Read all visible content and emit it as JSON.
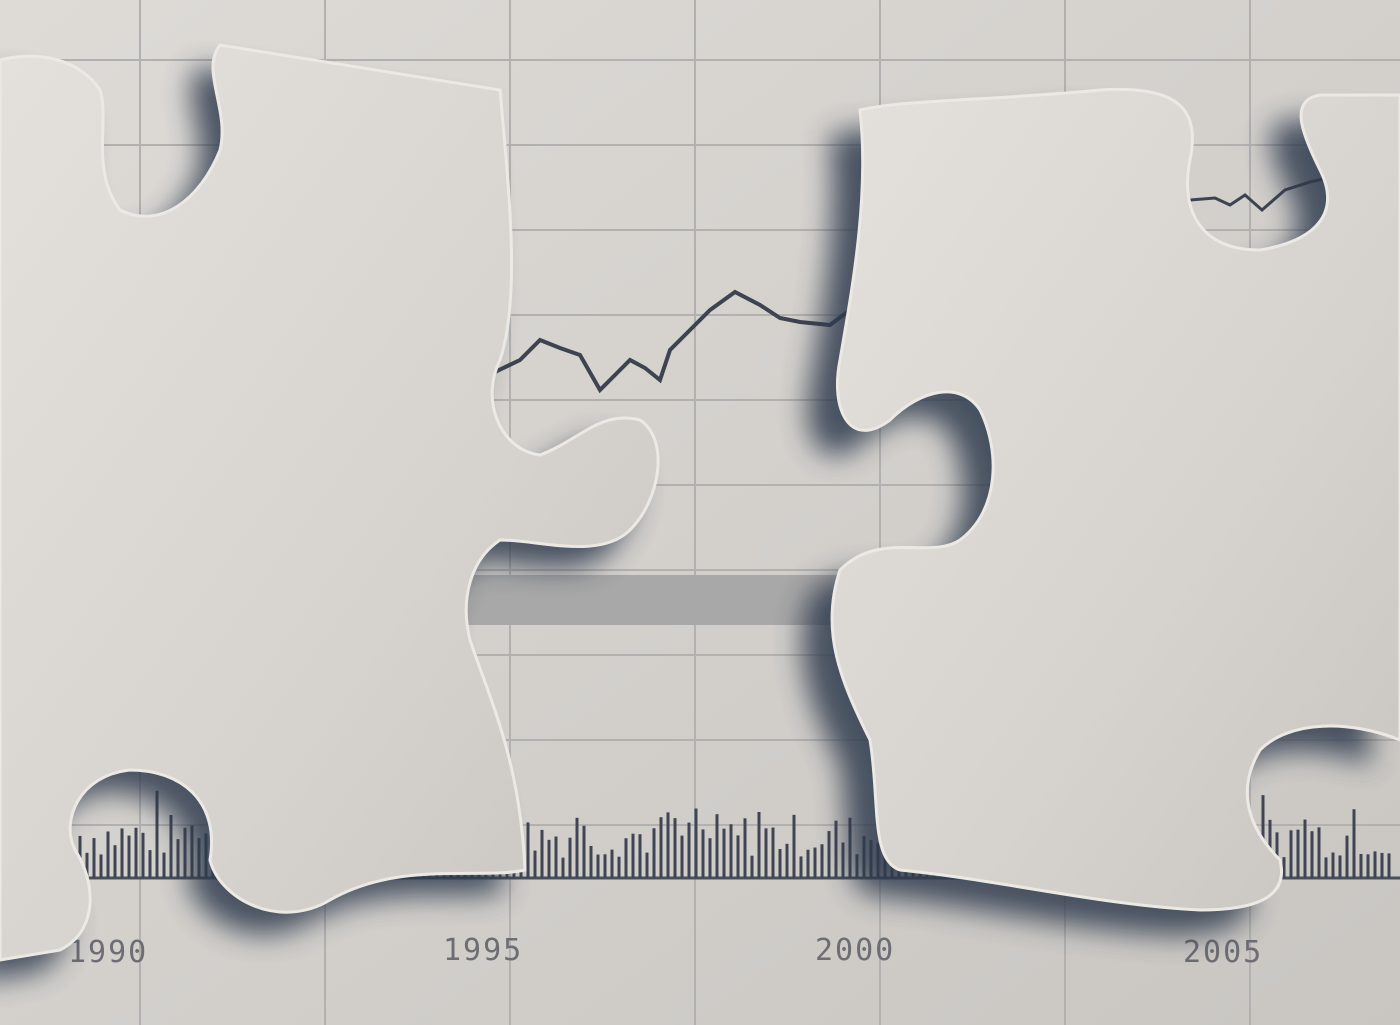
{
  "axis_labels": [
    "1990",
    "1995",
    "2000",
    "2005"
  ]
}
